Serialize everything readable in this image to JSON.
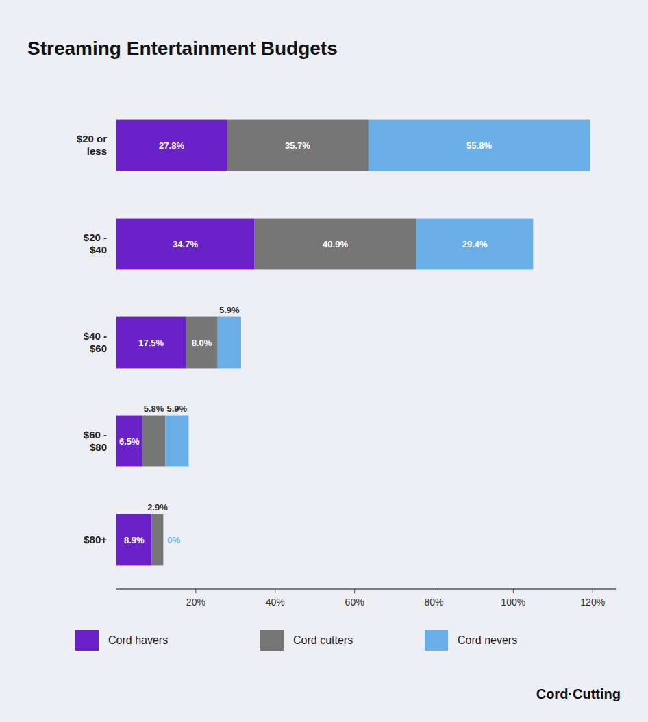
{
  "chart_data": {
    "type": "bar",
    "orientation": "horizontal",
    "stacked": true,
    "data_labels": true,
    "grid": false,
    "legend": "bottom",
    "title": "Streaming Entertainment Budgets",
    "annotations": [
      "Cord·Cutting"
    ],
    "categories": [
      "$20 or\nless",
      "$20 -\n$40",
      "$40 -\n$60",
      "$60 -\n$80",
      "$80+"
    ],
    "series": [
      {
        "name": "Cord havers",
        "color": "#6b21c8",
        "values": [
          27.8,
          34.7,
          17.5,
          6.5,
          8.9
        ],
        "value_labels": [
          "27.8%",
          "34.7%",
          "17.5%",
          "6.5%",
          "8.9%"
        ]
      },
      {
        "name": "Cord cutters",
        "color": "#767676",
        "values": [
          35.7,
          40.9,
          8.0,
          5.8,
          2.9
        ],
        "value_labels": [
          "35.7%",
          "40.9%",
          "8.0%",
          "5.8%",
          "2.9%"
        ]
      },
      {
        "name": "Cord nevers",
        "color": "#6aaee8",
        "values": [
          55.8,
          29.4,
          5.9,
          5.9,
          0.0
        ],
        "value_labels": [
          "55.8%",
          "29.4%",
          "5.9%",
          "5.9%",
          "0%"
        ]
      }
    ],
    "xlim": [
      0,
      126
    ],
    "xticks": [
      {
        "value": 20,
        "label": "20%"
      },
      {
        "value": 40,
        "label": "40%"
      },
      {
        "value": 60,
        "label": "60%"
      },
      {
        "value": 80,
        "label": "80%"
      },
      {
        "value": 100,
        "label": "100%"
      },
      {
        "value": 120,
        "label": "120%"
      }
    ]
  }
}
